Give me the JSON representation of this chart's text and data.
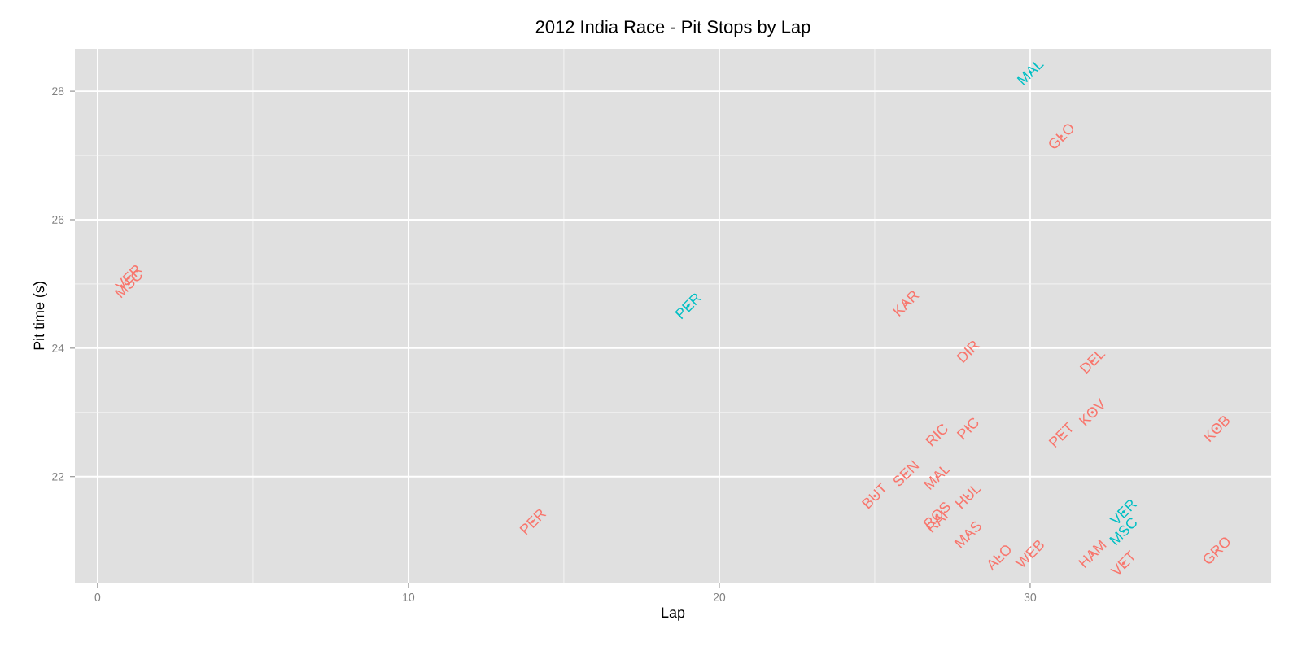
{
  "chart_data": {
    "type": "scatter",
    "title": "2012 India Race - Pit Stops by Lap",
    "xlabel": "Lap",
    "ylabel": "Pit time (s)",
    "xlim": [
      -0.73,
      37.75
    ],
    "ylim": [
      20.35,
      28.66
    ],
    "xticks": [
      0,
      10,
      20,
      30
    ],
    "yticks": [
      22,
      24,
      26,
      28
    ],
    "grid": true,
    "series": [
      {
        "color": "#f8766d",
        "x": [
          1,
          1,
          14,
          26,
          28,
          31,
          32,
          36,
          31,
          32,
          27,
          28,
          26,
          25,
          27,
          27,
          27,
          28,
          28,
          29,
          30,
          32,
          33,
          36
        ],
        "values": [
          25.1,
          25.0,
          21.3,
          24.7,
          23.95,
          27.3,
          23.8,
          22.75,
          22.65,
          23.0,
          22.65,
          22.75,
          22.05,
          21.7,
          22.0,
          21.4,
          21.3,
          21.7,
          21.1,
          20.75,
          20.8,
          20.8,
          20.65,
          20.85
        ],
        "value_labels": [
          "VER",
          "MSC",
          "PER",
          "KAR",
          "DIR",
          "GLO",
          "DEL",
          "KOB",
          "PET",
          "KOV",
          "RIC",
          "PIC",
          "SEN",
          "BUT",
          "MAL",
          "ROS",
          "RAI",
          "HUL",
          "MAS",
          "ALO",
          "WEB",
          "HAM",
          "VET",
          "GRO"
        ]
      },
      {
        "color": "#00bfc4",
        "x": [
          19,
          30,
          33,
          33
        ],
        "values": [
          24.66,
          28.3,
          21.45,
          21.15
        ],
        "value_labels": [
          "PER",
          "MAL",
          "VER",
          "MSC"
        ]
      }
    ]
  }
}
